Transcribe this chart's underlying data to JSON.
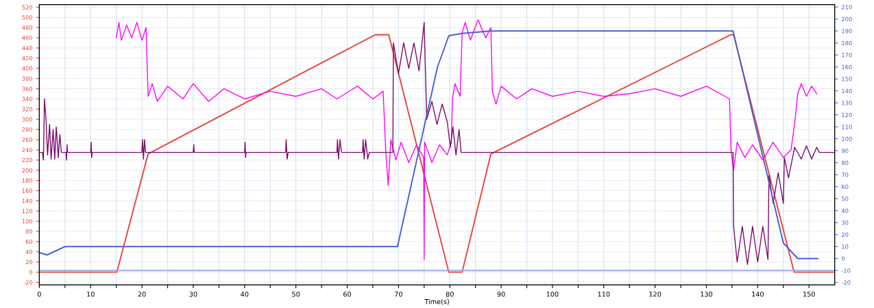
{
  "chart_data": {
    "type": "line",
    "xlabel": "Time(s)",
    "xlim": [
      0,
      155
    ],
    "xticks": [
      0,
      {
        "value": 5,
        "label": null
      },
      10,
      {
        "value": 15,
        "label": null
      },
      20,
      {
        "value": 25,
        "label": null
      },
      30,
      {
        "value": 35,
        "label": null
      },
      40,
      {
        "value": 45,
        "label": null
      },
      50,
      {
        "value": 55,
        "label": null
      },
      60,
      {
        "value": 65,
        "label": null
      },
      70,
      {
        "value": 75,
        "label": null
      },
      80,
      {
        "value": 85,
        "label": null
      },
      90,
      {
        "value": 95,
        "label": null
      },
      100,
      {
        "value": 105,
        "label": null
      },
      110,
      {
        "value": 115,
        "label": null
      },
      120,
      {
        "value": 125,
        "label": null
      },
      130,
      {
        "value": 135,
        "label": null
      },
      140,
      {
        "value": 145,
        "label": null
      },
      150
    ],
    "ylim": [
      -25,
      525
    ],
    "yticks": [
      -20,
      0,
      20,
      40,
      60,
      80,
      100,
      120,
      140,
      160,
      180,
      200,
      220,
      240,
      260,
      280,
      300,
      320,
      340,
      360,
      380,
      400,
      420,
      440,
      460,
      480,
      500,
      520
    ],
    "y2lim": [
      -22,
      212
    ],
    "y2ticks": [
      -20,
      -10,
      0,
      10,
      20,
      30,
      40,
      50,
      60,
      70,
      80,
      90,
      100,
      110,
      120,
      130,
      140,
      150,
      160,
      170,
      180,
      190,
      200,
      210
    ],
    "grid": true,
    "legend": false,
    "marker": "none",
    "line_style": "solid",
    "series": [
      {
        "color": "#e8453c",
        "x": [
          0,
          15.1,
          21.2,
          65.5,
          68.1,
          79.8,
          82.4,
          88,
          134.8,
          135.3,
          147.1,
          155
        ],
        "values": [
          0,
          0,
          232,
          466,
          466,
          0,
          0,
          232,
          466,
          466,
          0,
          0
        ]
      },
      {
        "color": "#ff00ff",
        "x": [
          15,
          15.5,
          16,
          17,
          18,
          19,
          20,
          20.8,
          21.2,
          22,
          23,
          25,
          28,
          30,
          33,
          36,
          40,
          45,
          50,
          55,
          58,
          62,
          65,
          67,
          67.5,
          68,
          68.5,
          69.5,
          70.5,
          72,
          73.5,
          74.9,
          75,
          75.1,
          76.5,
          78,
          79.5,
          80.3,
          80.5,
          81,
          82,
          82.4,
          83,
          84,
          85.5,
          87,
          88,
          88.3,
          89,
          90,
          93,
          96,
          100,
          105,
          110,
          115,
          120,
          125,
          130,
          134.5,
          134.8,
          135.3,
          136,
          137.5,
          139,
          141,
          143,
          145,
          146.5,
          147.3,
          147.8,
          148.5,
          149.5,
          150.5,
          151.5
        ],
        "values": [
          460,
          490,
          455,
          485,
          460,
          490,
          455,
          480,
          345,
          370,
          335,
          365,
          340,
          370,
          335,
          360,
          340,
          355,
          345,
          360,
          340,
          365,
          340,
          355,
          240,
          170,
          260,
          220,
          255,
          215,
          250,
          225,
          25,
          255,
          215,
          250,
          230,
          255,
          340,
          370,
          345,
          470,
          490,
          455,
          495,
          460,
          480,
          355,
          330,
          365,
          340,
          360,
          345,
          355,
          345,
          350,
          360,
          345,
          365,
          340,
          240,
          200,
          255,
          225,
          250,
          220,
          255,
          225,
          240,
          300,
          350,
          370,
          345,
          365,
          350
        ]
      },
      {
        "color": "#7a0a6e",
        "x": [
          0,
          0.6,
          0.8,
          1.0,
          1.3,
          1.6,
          2,
          2.3,
          2.7,
          3.0,
          3.3,
          3.7,
          4.0,
          4.3,
          5.2,
          5.3,
          5.4,
          5.5,
          10,
          10.1,
          10.2,
          10.3,
          20,
          20.1,
          20.3,
          20.5,
          20.7,
          30,
          30.1,
          30.2,
          40,
          40.1,
          40.2,
          40.3,
          48,
          48.1,
          48.3,
          48.5,
          58,
          58.1,
          58.3,
          58.6,
          58.9,
          63,
          63.1,
          63.3,
          63.6,
          64,
          64.3,
          68.9,
          69.0,
          70,
          71,
          72,
          73,
          74,
          75,
          75.1,
          75.5,
          76.5,
          77.5,
          78.5,
          79.5,
          80.1,
          80.6,
          81.2,
          81.8,
          82.2,
          90,
          100,
          120,
          135.2,
          135.3,
          136,
          137,
          138,
          139,
          140,
          141,
          142,
          142.2,
          143,
          144,
          145,
          145.2,
          146,
          146.8,
          147.2,
          148.5,
          149.5,
          150.5,
          151.5,
          152,
          155
        ],
        "values": [
          235,
          235,
          220,
          340,
          300,
          230,
          290,
          222,
          280,
          222,
          285,
          225,
          270,
          235,
          235,
          220,
          250,
          235,
          235,
          255,
          225,
          235,
          235,
          260,
          222,
          260,
          235,
          235,
          250,
          235,
          235,
          255,
          225,
          235,
          235,
          260,
          222,
          235,
          235,
          260,
          222,
          260,
          235,
          235,
          260,
          222,
          260,
          222,
          235,
          235,
          450,
          390,
          450,
          400,
          450,
          395,
          490,
          450,
          300,
          335,
          290,
          330,
          295,
          245,
          285,
          230,
          280,
          235,
          235,
          235,
          235,
          235,
          90,
          20,
          90,
          15,
          90,
          20,
          90,
          25,
          190,
          135,
          195,
          135,
          225,
          185,
          225,
          245,
          222,
          248,
          222,
          245,
          235,
          235
        ]
      },
      {
        "color": "#4a5fd6",
        "axis": "y2",
        "x": [
          0,
          1.5,
          5,
          69.8,
          77.6,
          79.8,
          82.4,
          88,
          135.2,
          145,
          147.8,
          151.7
        ],
        "values": [
          5,
          3,
          10,
          10,
          160,
          186,
          188,
          190,
          190,
          13,
          0,
          0
        ]
      },
      {
        "color": "#9fa8e8",
        "axis": "y2",
        "x": [
          0,
          155
        ],
        "values": [
          -10,
          -10
        ]
      }
    ]
  }
}
